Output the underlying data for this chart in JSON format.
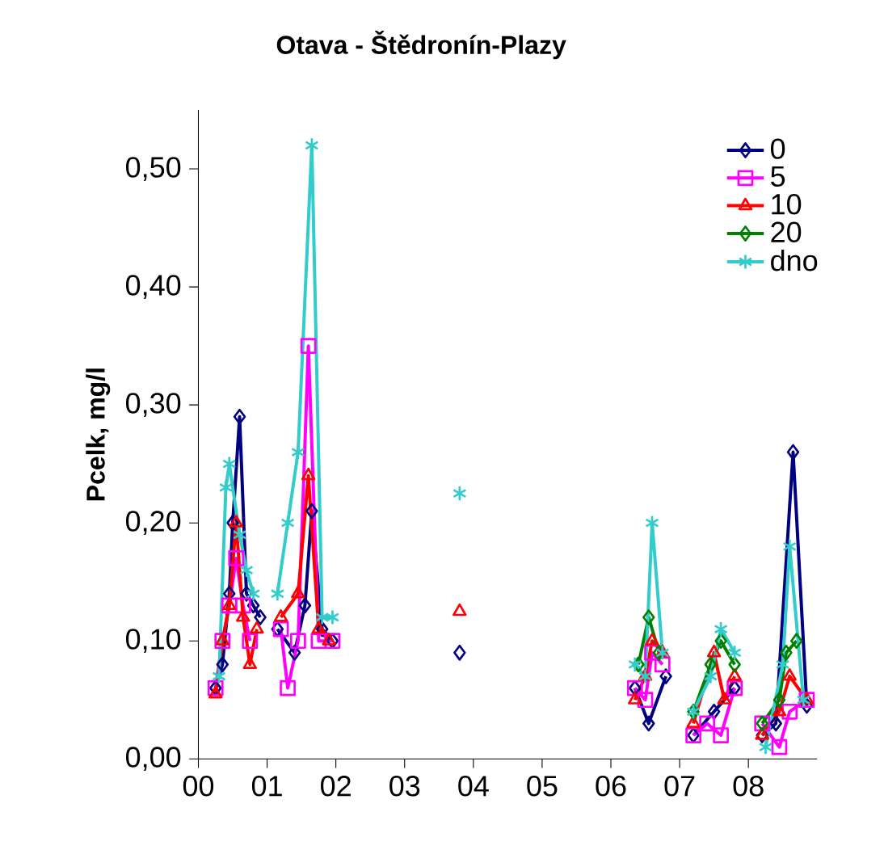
{
  "chart_data": {
    "type": "line",
    "title": "Otava - Štědronín-Plazy",
    "ylabel": "Pcelk, mg/l",
    "xlim": [
      2000,
      2009
    ],
    "ylim": [
      0,
      0.55
    ],
    "xticks": [
      {
        "value": 2000,
        "label": "00"
      },
      {
        "value": 2001,
        "label": "01"
      },
      {
        "value": 2002,
        "label": "02"
      },
      {
        "value": 2003,
        "label": "03"
      },
      {
        "value": 2004,
        "label": "04"
      },
      {
        "value": 2005,
        "label": "05"
      },
      {
        "value": 2006,
        "label": "06"
      },
      {
        "value": 2007,
        "label": "07"
      },
      {
        "value": 2008,
        "label": "08"
      }
    ],
    "yticks": [
      {
        "value": 0,
        "label": "0,00"
      },
      {
        "value": 0.1,
        "label": "0,10"
      },
      {
        "value": 0.2,
        "label": "0,20"
      },
      {
        "value": 0.3,
        "label": "0,30"
      },
      {
        "value": 0.4,
        "label": "0,40"
      },
      {
        "value": 0.5,
        "label": "0,50"
      }
    ],
    "legend": "top right",
    "grid": false,
    "series": [
      {
        "name": "0",
        "color": "#000080",
        "marker": "diamond",
        "x": [
          2000.25,
          2000.35,
          2000.45,
          2000.5,
          2000.6,
          2000.7,
          2000.8,
          2000.9,
          2001.0,
          2001.15,
          2001.4,
          2001.55,
          2001.65,
          2001.8,
          2001.95,
          2003.0,
          2003.8,
          2005.0,
          2006.35,
          2006.55,
          2006.8,
          2007.0,
          2007.2,
          2007.5,
          2007.8,
          2008.0,
          2008.2,
          2008.4,
          2008.65,
          2008.85
        ],
        "values": [
          0.06,
          0.08,
          0.14,
          0.2,
          0.29,
          0.14,
          0.13,
          0.12,
          null,
          0.11,
          0.09,
          0.13,
          0.21,
          0.11,
          0.1,
          null,
          0.09,
          null,
          0.06,
          0.03,
          0.07,
          null,
          0.02,
          0.04,
          0.06,
          null,
          0.02,
          0.03,
          0.26,
          0.045
        ]
      },
      {
        "name": "5",
        "color": "#ff00ff",
        "marker": "square",
        "x": [
          2000.25,
          2000.35,
          2000.45,
          2000.55,
          2000.65,
          2000.75,
          2001.0,
          2001.2,
          2001.3,
          2001.45,
          2001.6,
          2001.75,
          2001.95,
          2005.0,
          2006.35,
          2006.5,
          2006.6,
          2006.75,
          2007.0,
          2007.2,
          2007.4,
          2007.6,
          2007.8,
          2008.0,
          2008.2,
          2008.45,
          2008.6,
          2008.85
        ],
        "values": [
          0.06,
          0.1,
          0.13,
          0.17,
          0.13,
          0.1,
          null,
          0.11,
          0.06,
          0.1,
          0.35,
          0.1,
          0.1,
          null,
          0.06,
          0.05,
          0.09,
          0.08,
          null,
          0.02,
          0.03,
          0.02,
          0.06,
          null,
          0.03,
          0.01,
          0.04,
          0.05
        ]
      },
      {
        "name": "10",
        "color": "#ff0000",
        "marker": "triangle",
        "x": [
          2000.25,
          2000.35,
          2000.45,
          2000.55,
          2000.65,
          2000.75,
          2000.85,
          2001.0,
          2001.2,
          2001.45,
          2001.6,
          2001.75,
          2001.9,
          2003.0,
          2003.8,
          2005.0,
          2006.35,
          2006.5,
          2006.6,
          2006.75,
          2007.0,
          2007.2,
          2007.5,
          2007.65,
          2007.8,
          2008.0,
          2008.2,
          2008.45,
          2008.6,
          2008.85
        ],
        "values": [
          0.055,
          0.1,
          0.13,
          0.2,
          0.12,
          0.08,
          0.11,
          null,
          0.12,
          0.14,
          0.24,
          0.11,
          0.1,
          null,
          0.125,
          null,
          0.05,
          0.07,
          0.1,
          0.09,
          null,
          0.03,
          0.09,
          0.05,
          0.07,
          null,
          0.02,
          0.04,
          0.07,
          0.05
        ]
      },
      {
        "name": "20",
        "color": "#008000",
        "marker": "diamond",
        "x": [
          2006.4,
          2006.55,
          2006.7,
          2007.0,
          2007.2,
          2007.45,
          2007.6,
          2007.8,
          2008.0,
          2008.2,
          2008.45,
          2008.55,
          2008.7
        ],
        "values": [
          0.08,
          0.12,
          0.09,
          null,
          0.04,
          0.08,
          0.1,
          0.08,
          null,
          0.03,
          0.05,
          0.09,
          0.1
        ]
      },
      {
        "name": "dno",
        "color": "#33cccc",
        "marker": "cross",
        "x": [
          2000.3,
          2000.4,
          2000.45,
          2000.6,
          2000.7,
          2000.8,
          2001.0,
          2001.15,
          2001.3,
          2001.45,
          2001.65,
          2001.8,
          2001.95,
          2003.0,
          2003.8,
          2005.0,
          2006.35,
          2006.5,
          2006.6,
          2006.75,
          2007.0,
          2007.2,
          2007.45,
          2007.6,
          2007.8,
          2008.0,
          2008.25,
          2008.5,
          2008.6,
          2008.8
        ],
        "values": [
          0.07,
          0.23,
          0.25,
          0.19,
          0.16,
          0.14,
          null,
          0.14,
          0.2,
          0.26,
          0.52,
          0.12,
          0.12,
          null,
          0.225,
          null,
          0.08,
          0.07,
          0.2,
          0.09,
          null,
          0.04,
          0.07,
          0.11,
          0.09,
          null,
          0.01,
          0.08,
          0.18,
          0.05
        ]
      }
    ]
  }
}
